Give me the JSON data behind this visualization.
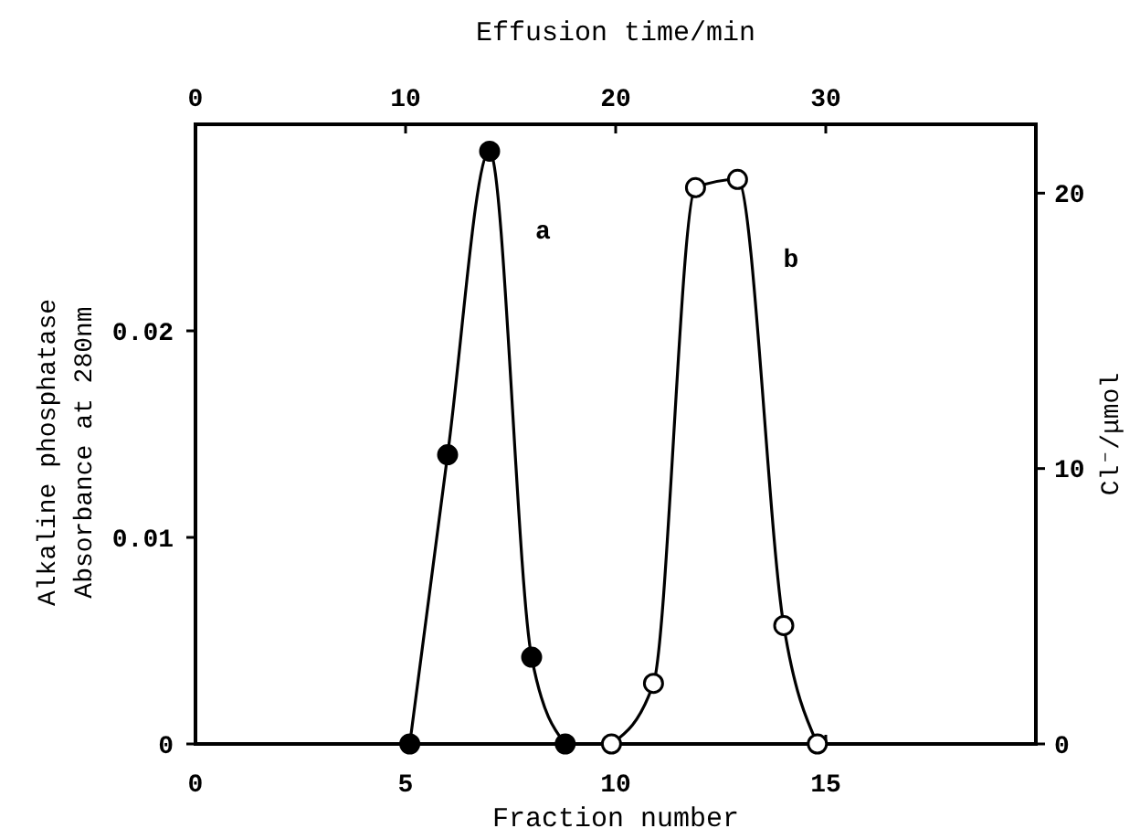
{
  "chart_data": {
    "type": "line",
    "xlabel": "Fraction number",
    "x2label": "Effusion time/min",
    "ylabel": "Alkaline phosphatase\nAbsorbance at 280nm",
    "y2label": "Cl⁻/μmol",
    "xlim": [
      0,
      20
    ],
    "xticks": [
      0,
      5,
      10,
      15
    ],
    "x2lim": [
      0,
      40
    ],
    "x2ticks": [
      0,
      10,
      20,
      30
    ],
    "ylim": [
      0,
      0.03
    ],
    "yticks": [
      0,
      {
        "value": 0.01,
        "label": "0.01"
      },
      {
        "value": 0.02,
        "label": "0.02"
      }
    ],
    "y2lim": [
      0,
      22.5
    ],
    "y2ticks": [
      0,
      10,
      20
    ],
    "marker": "circle",
    "series": [
      {
        "name": "a",
        "color": "#000000",
        "x": [
          5.1,
          6.0,
          7.0,
          8.0,
          8.8
        ],
        "values": [
          0,
          0.014,
          0.0287,
          0.0042,
          0
        ]
      },
      {
        "name": "b",
        "color": "#000000",
        "axis": "y2",
        "x": [
          9.9,
          10.9,
          11.9,
          12.9,
          14.0,
          14.8
        ],
        "values": [
          0,
          2.2,
          20.2,
          20.5,
          4.3,
          0
        ]
      }
    ]
  }
}
